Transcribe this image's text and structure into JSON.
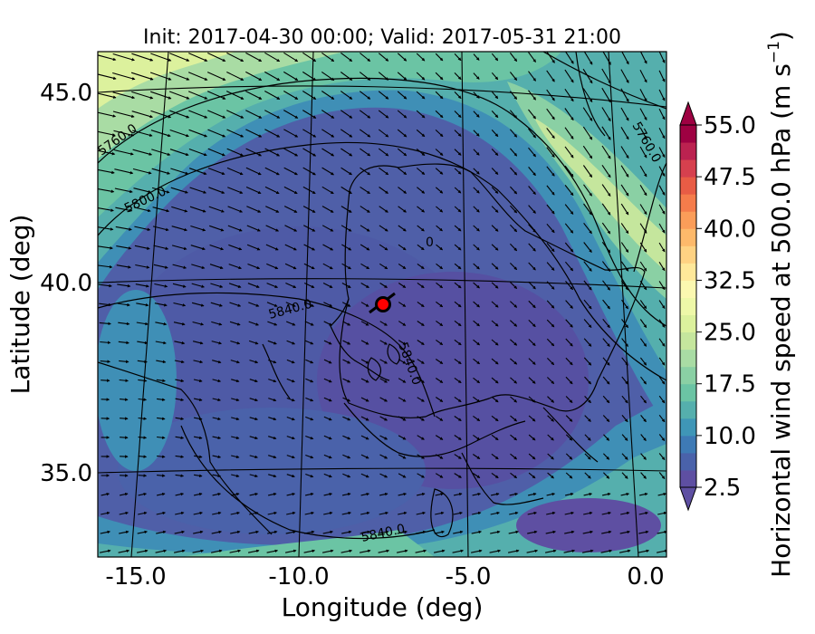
{
  "title": "Init: 2017-04-30 00:00; Valid: 2017-05-31 21:00",
  "map": {
    "xlabel": "Longitude (deg)",
    "ylabel": "Latitude (deg)",
    "xlim": [
      -16.0,
      0.3
    ],
    "ylim": [
      32.7,
      46.2
    ],
    "xticks": [
      "-15.0",
      "-10.0",
      "-5.0",
      "0.0"
    ],
    "xtick_values": [
      -15,
      -10,
      -5,
      0
    ],
    "yticks": [
      "35.0",
      "40.0",
      "45.0"
    ],
    "ytick_values": [
      35,
      40,
      45
    ],
    "contour_labels": [
      "5760.0",
      "5800.0",
      "5840.0",
      "5840.0",
      "5840.0",
      "5760.0",
      "0"
    ],
    "marker": {
      "lon": -7.7,
      "lat": 39.3,
      "color": "#ff0000"
    }
  },
  "colorbar": {
    "label": "Horizontal wind speed at 500.0 hPa (m s",
    "label_sup": "−1",
    "label_end": ")",
    "ticks": [
      "2.5",
      "10.0",
      "17.5",
      "25.0",
      "32.5",
      "40.0",
      "47.5",
      "55.0"
    ],
    "tick_values": [
      2.5,
      10.0,
      17.5,
      25.0,
      32.5,
      40.0,
      47.5,
      55.0
    ],
    "levels": [
      2.5,
      55.0
    ],
    "colors": [
      "#5e4fa2",
      "#4a62aa",
      "#3e7ab5",
      "#3f96b7",
      "#55afad",
      "#6bc4a4",
      "#8ad0a4",
      "#a9dca4",
      "#c5e69d",
      "#dcf19d",
      "#eef8a8",
      "#fbf8b0",
      "#fee89a",
      "#fed283",
      "#fdb96b",
      "#fb9d59",
      "#f57c4b",
      "#e85c45",
      "#d6404e",
      "#bb2250",
      "#9e0142"
    ]
  },
  "chart_data": {
    "type": "heatmap",
    "title": "Init: 2017-04-30 00:00; Valid: 2017-05-31 21:00",
    "xlabel": "Longitude (deg)",
    "ylabel": "Latitude (deg)",
    "colorbar_label": "Horizontal wind speed at 500.0 hPa (m s−1)",
    "colorbar_range": [
      2.5,
      55.0
    ],
    "xlim": [
      -16.0,
      0.3
    ],
    "ylim": [
      32.7,
      46.2
    ],
    "notes": "Wind speed field with wind vectors and geopotential height contours (5760, 5800, 5840 m)"
  }
}
